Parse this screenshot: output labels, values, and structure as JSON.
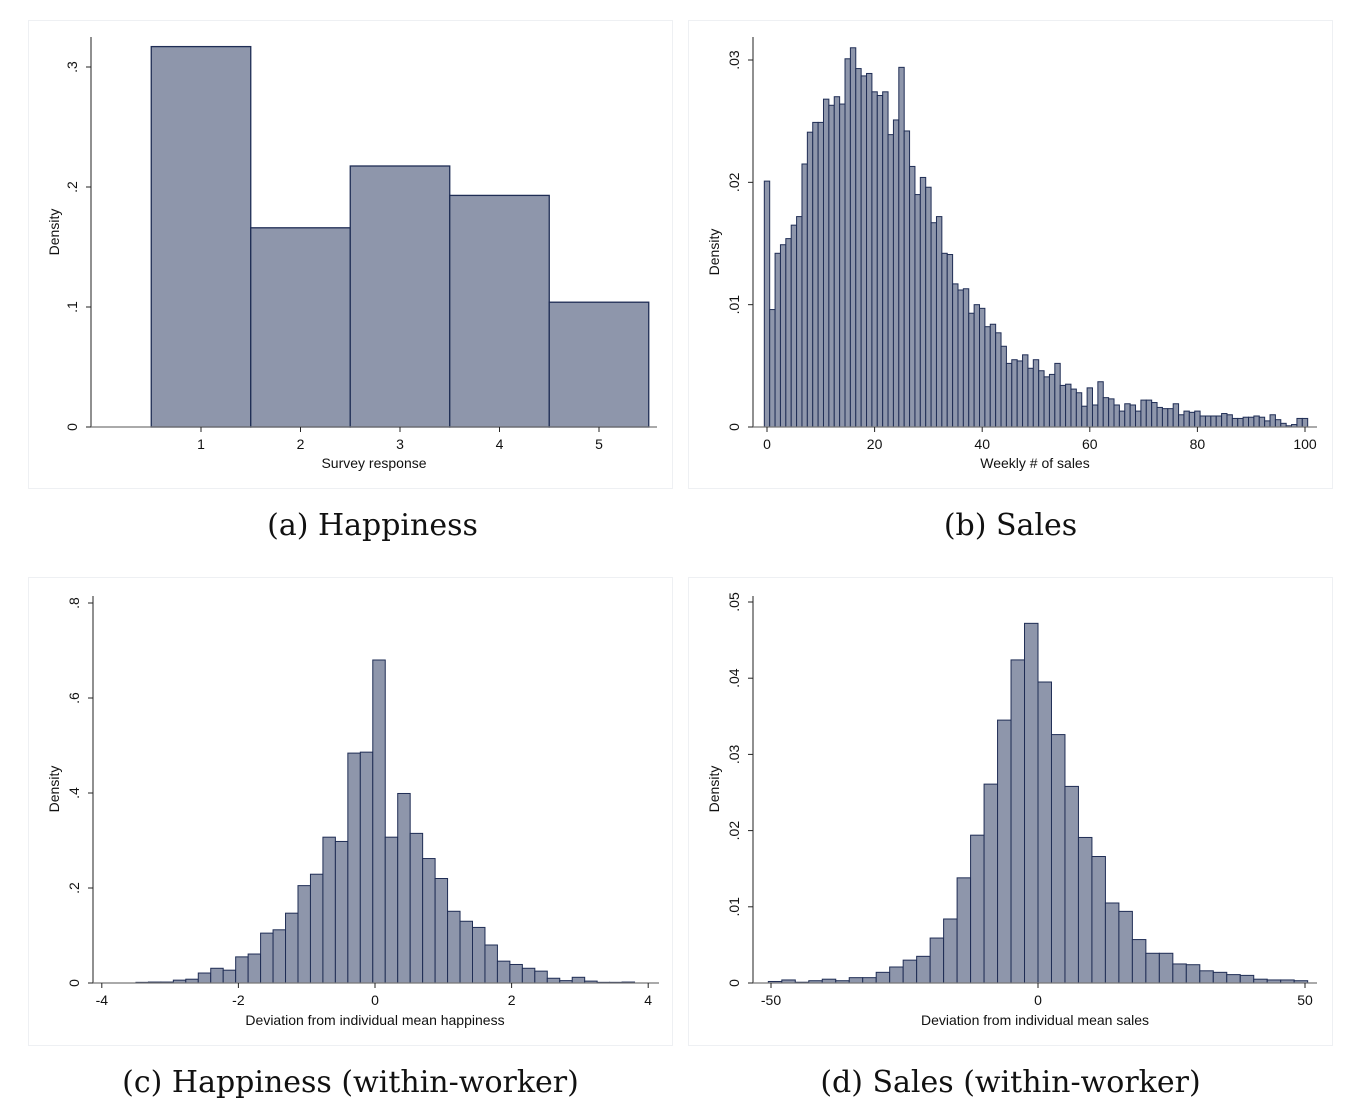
{
  "chart_data": [
    {
      "type": "bar",
      "caption": "(a) Happiness",
      "xlabel": "Survey response",
      "ylabel": "Density",
      "categories": [
        1,
        2,
        3,
        4,
        5
      ],
      "bin_width": 1,
      "values": [
        0.317,
        0.166,
        0.2175,
        0.193,
        0.104
      ],
      "xticks": [
        {
          "v": 1,
          "label": "1"
        },
        {
          "v": 2,
          "label": "2"
        },
        {
          "v": 3,
          "label": "3"
        },
        {
          "v": 4,
          "label": "4"
        },
        {
          "v": 5,
          "label": "5"
        }
      ],
      "yticks": [
        {
          "v": 0,
          "label": "0"
        },
        {
          "v": 0.1,
          "label": ".1"
        },
        {
          "v": 0.2,
          "label": ".2"
        },
        {
          "v": 0.3,
          "label": ".3"
        }
      ],
      "grid": false,
      "colors": {
        "fill": "#8e96ab",
        "edge": "#1f2d55"
      }
    },
    {
      "type": "bar",
      "caption": "(b) Sales",
      "xlabel": "Weekly # of sales",
      "ylabel": "Density",
      "bin_start": -0.5,
      "bin_width": 1,
      "values": [
        0.0201,
        0.0096,
        0.0142,
        0.0149,
        0.0154,
        0.0165,
        0.0172,
        0.0215,
        0.0241,
        0.0249,
        0.0249,
        0.0268,
        0.0263,
        0.027,
        0.0264,
        0.0301,
        0.031,
        0.0293,
        0.0287,
        0.0289,
        0.0274,
        0.0271,
        0.0274,
        0.0239,
        0.0251,
        0.0294,
        0.0242,
        0.0213,
        0.019,
        0.0204,
        0.0196,
        0.0167,
        0.0172,
        0.0142,
        0.0141,
        0.0117,
        0.0112,
        0.0113,
        0.0093,
        0.01,
        0.0097,
        0.0082,
        0.0084,
        0.0077,
        0.0066,
        0.0052,
        0.0055,
        0.0054,
        0.0059,
        0.0048,
        0.0055,
        0.0046,
        0.0041,
        0.0043,
        0.0052,
        0.0034,
        0.0035,
        0.0031,
        0.0028,
        0.0017,
        0.0032,
        0.0018,
        0.0037,
        0.0024,
        0.0023,
        0.0018,
        0.0013,
        0.0019,
        0.0018,
        0.0013,
        0.0022,
        0.0022,
        0.002,
        0.0016,
        0.0015,
        0.0015,
        0.0019,
        0.001,
        0.0013,
        0.0012,
        0.0013,
        0.0009,
        0.0009,
        0.0009,
        0.0009,
        0.0011,
        0.001,
        0.0007,
        0.0007,
        0.0008,
        0.0008,
        0.0009,
        0.0008,
        0.0005,
        0.001,
        0.0006,
        0.0003,
        0.0001,
        0.0002,
        0.0007,
        0.0007
      ],
      "xticks": [
        {
          "v": 0,
          "label": "0"
        },
        {
          "v": 20,
          "label": "20"
        },
        {
          "v": 40,
          "label": "40"
        },
        {
          "v": 60,
          "label": "60"
        },
        {
          "v": 80,
          "label": "80"
        },
        {
          "v": 100,
          "label": "100"
        }
      ],
      "yticks": [
        {
          "v": 0,
          "label": "0"
        },
        {
          "v": 0.01,
          "label": ".01"
        },
        {
          "v": 0.02,
          "label": ".02"
        },
        {
          "v": 0.03,
          "label": ".03"
        }
      ],
      "grid": false,
      "colors": {
        "fill": "#8e96ab",
        "edge": "#1f2d55"
      }
    },
    {
      "type": "bar",
      "caption": "(c) Happiness (within-worker)",
      "xlabel": "Deviation from individual mean happiness",
      "ylabel": "Density",
      "bin_start": -3.5,
      "bin_width": 0.1825,
      "values": [
        0.0014,
        0.002,
        0.002,
        0.006,
        0.008,
        0.021,
        0.031,
        0.027,
        0.055,
        0.061,
        0.105,
        0.112,
        0.147,
        0.205,
        0.229,
        0.307,
        0.298,
        0.484,
        0.486,
        0.68,
        0.307,
        0.399,
        0.315,
        0.262,
        0.22,
        0.151,
        0.13,
        0.117,
        0.08,
        0.046,
        0.039,
        0.031,
        0.025,
        0.01,
        0.005,
        0.012,
        0.004,
        0.0014,
        0.0014,
        0.002
      ],
      "xticks": [
        {
          "v": -4,
          "label": "-4"
        },
        {
          "v": -2,
          "label": "-2"
        },
        {
          "v": 0,
          "label": "0"
        },
        {
          "v": 2,
          "label": "2"
        },
        {
          "v": 4,
          "label": "4"
        }
      ],
      "yticks": [
        {
          "v": 0,
          "label": "0"
        },
        {
          "v": 0.2,
          "label": ".2"
        },
        {
          "v": 0.4,
          "label": ".4"
        },
        {
          "v": 0.6,
          "label": ".6"
        },
        {
          "v": 0.8,
          "label": ".8"
        }
      ],
      "grid": false,
      "colors": {
        "fill": "#8e96ab",
        "edge": "#1f2d55"
      }
    },
    {
      "type": "bar",
      "caption": "(d) Sales (within-worker)",
      "xlabel": "Deviation from individual mean sales",
      "ylabel": "Density",
      "bin_start": -50.5,
      "bin_width": 2.525,
      "values": [
        0.0002,
        0.0004,
        0.0001,
        0.0003,
        0.0005,
        0.0003,
        0.0007,
        0.0007,
        0.0014,
        0.0021,
        0.003,
        0.0035,
        0.0059,
        0.0084,
        0.0138,
        0.0194,
        0.0261,
        0.0345,
        0.0424,
        0.0472,
        0.0395,
        0.0326,
        0.0258,
        0.0191,
        0.0166,
        0.0105,
        0.0094,
        0.0057,
        0.0039,
        0.0039,
        0.0025,
        0.0024,
        0.0016,
        0.0014,
        0.0011,
        0.001,
        0.0005,
        0.0004,
        0.0004,
        0.0003
      ],
      "xticks": [
        {
          "v": -50,
          "label": "-50"
        },
        {
          "v": 0,
          "label": "0"
        },
        {
          "v": 50,
          "label": "50"
        }
      ],
      "yticks": [
        {
          "v": 0,
          "label": "0"
        },
        {
          "v": 0.01,
          "label": ".01"
        },
        {
          "v": 0.02,
          "label": ".02"
        },
        {
          "v": 0.03,
          "label": ".03"
        },
        {
          "v": 0.04,
          "label": ".04"
        },
        {
          "v": 0.05,
          "label": ".05"
        }
      ],
      "grid": false,
      "colors": {
        "fill": "#8e96ab",
        "edge": "#1f2d55"
      }
    }
  ]
}
